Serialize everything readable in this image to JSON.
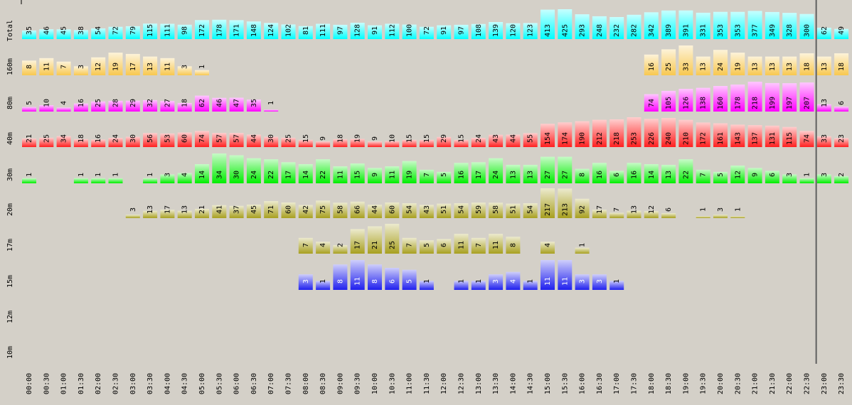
{
  "chart_data": {
    "type": "heatmap",
    "times": [
      "00:00",
      "00:30",
      "01:00",
      "01:30",
      "02:00",
      "02:30",
      "03:00",
      "03:30",
      "04:00",
      "04:30",
      "05:00",
      "05:30",
      "06:00",
      "06:30",
      "07:00",
      "07:30",
      "08:00",
      "08:30",
      "09:00",
      "09:30",
      "10:00",
      "10:30",
      "11:00",
      "11:30",
      "12:00",
      "12:30",
      "13:00",
      "13:30",
      "14:00",
      "14:30",
      "15:00",
      "15:30",
      "16:00",
      "16:30",
      "17:00",
      "17:30",
      "18:00",
      "18:30",
      "19:00",
      "19:30",
      "20:00",
      "20:30",
      "21:00",
      "21:30",
      "22:00",
      "22:30",
      "23:00",
      "23:30"
    ],
    "current_time_marker": "23:00",
    "rows": [
      {
        "label": "Total",
        "color": "#00ffff",
        "values": [
          35,
          46,
          45,
          38,
          54,
          72,
          79,
          115,
          111,
          98,
          172,
          178,
          171,
          148,
          124,
          102,
          81,
          111,
          97,
          128,
          91,
          112,
          100,
          72,
          91,
          97,
          108,
          139,
          120,
          123,
          413,
          425,
          293,
          248,
          232,
          282,
          342,
          389,
          391,
          331,
          353,
          353,
          377,
          349,
          328,
          300,
          62,
          49
        ]
      },
      {
        "label": "160m",
        "color": "#f8c850",
        "values": [
          8,
          11,
          7,
          3,
          12,
          19,
          17,
          13,
          11,
          3,
          1,
          null,
          null,
          null,
          null,
          null,
          null,
          null,
          null,
          null,
          null,
          null,
          null,
          null,
          null,
          null,
          null,
          null,
          null,
          null,
          null,
          null,
          null,
          null,
          null,
          null,
          16,
          25,
          33,
          13,
          24,
          19,
          13,
          13,
          13,
          18,
          13,
          18
        ]
      },
      {
        "label": "80m",
        "color": "#ff00ff",
        "values": [
          5,
          10,
          4,
          16,
          25,
          28,
          29,
          32,
          27,
          18,
          62,
          46,
          47,
          35,
          1,
          null,
          null,
          null,
          null,
          null,
          null,
          null,
          null,
          null,
          null,
          null,
          null,
          null,
          null,
          null,
          null,
          null,
          null,
          null,
          null,
          null,
          74,
          105,
          126,
          138,
          160,
          178,
          218,
          199,
          197,
          207,
          13,
          6
        ]
      },
      {
        "label": "40m",
        "color": "#ff2020",
        "values": [
          21,
          25,
          34,
          18,
          16,
          24,
          30,
          56,
          53,
          60,
          74,
          57,
          57,
          44,
          30,
          25,
          15,
          9,
          18,
          19,
          9,
          10,
          15,
          15,
          29,
          15,
          24,
          43,
          44,
          55,
          154,
          174,
          190,
          212,
          218,
          253,
          226,
          240,
          210,
          172,
          161,
          143,
          137,
          131,
          115,
          74,
          33,
          23
        ]
      },
      {
        "label": "30m",
        "color": "#00ee00",
        "values": [
          1,
          null,
          null,
          1,
          1,
          1,
          null,
          1,
          3,
          4,
          14,
          34,
          30,
          24,
          22,
          17,
          14,
          22,
          11,
          15,
          9,
          11,
          19,
          7,
          5,
          16,
          17,
          24,
          13,
          13,
          27,
          27,
          8,
          16,
          6,
          16,
          14,
          13,
          22,
          7,
          5,
          12,
          9,
          6,
          3,
          1,
          3,
          2
        ]
      },
      {
        "label": "20m",
        "color": "#a8a020",
        "values": [
          null,
          null,
          null,
          null,
          null,
          null,
          3,
          13,
          17,
          13,
          21,
          41,
          37,
          45,
          71,
          60,
          42,
          75,
          58,
          66,
          44,
          60,
          54,
          43,
          51,
          54,
          59,
          58,
          51,
          54,
          217,
          213,
          92,
          17,
          7,
          13,
          12,
          6,
          null,
          1,
          3,
          1,
          null,
          null,
          null,
          null,
          null,
          null
        ]
      },
      {
        "label": "17m",
        "color": "#a8a020",
        "values": [
          null,
          null,
          null,
          null,
          null,
          null,
          null,
          null,
          null,
          null,
          null,
          null,
          null,
          null,
          null,
          null,
          7,
          4,
          2,
          17,
          21,
          25,
          7,
          5,
          6,
          11,
          7,
          11,
          8,
          null,
          4,
          null,
          1,
          null,
          null,
          null,
          null,
          null,
          null,
          null,
          null,
          null,
          null,
          null,
          null,
          null,
          null,
          null
        ]
      },
      {
        "label": "15m",
        "color": "#2020ee",
        "values": [
          null,
          null,
          null,
          null,
          null,
          null,
          null,
          null,
          null,
          null,
          null,
          null,
          null,
          null,
          null,
          null,
          3,
          1,
          8,
          11,
          8,
          6,
          5,
          1,
          null,
          1,
          1,
          3,
          4,
          1,
          11,
          11,
          3,
          3,
          1,
          null,
          null,
          null,
          null,
          null,
          null,
          null,
          null,
          null,
          null,
          null,
          null,
          null
        ]
      },
      {
        "label": "12m",
        "color": "#808080",
        "values": [
          null,
          null,
          null,
          null,
          null,
          null,
          null,
          null,
          null,
          null,
          null,
          null,
          null,
          null,
          null,
          null,
          null,
          null,
          null,
          null,
          null,
          null,
          null,
          null,
          null,
          null,
          null,
          null,
          null,
          null,
          null,
          null,
          null,
          null,
          null,
          null,
          null,
          null,
          null,
          null,
          null,
          null,
          null,
          null,
          null,
          null,
          null,
          null
        ]
      },
      {
        "label": "10m",
        "color": "#808080",
        "values": [
          null,
          null,
          null,
          null,
          null,
          null,
          null,
          null,
          null,
          null,
          null,
          null,
          null,
          null,
          null,
          null,
          null,
          null,
          null,
          null,
          null,
          null,
          null,
          null,
          null,
          null,
          null,
          null,
          null,
          null,
          null,
          null,
          null,
          null,
          null,
          null,
          null,
          null,
          null,
          null,
          null,
          null,
          null,
          null,
          null,
          null,
          null,
          null
        ]
      }
    ]
  }
}
